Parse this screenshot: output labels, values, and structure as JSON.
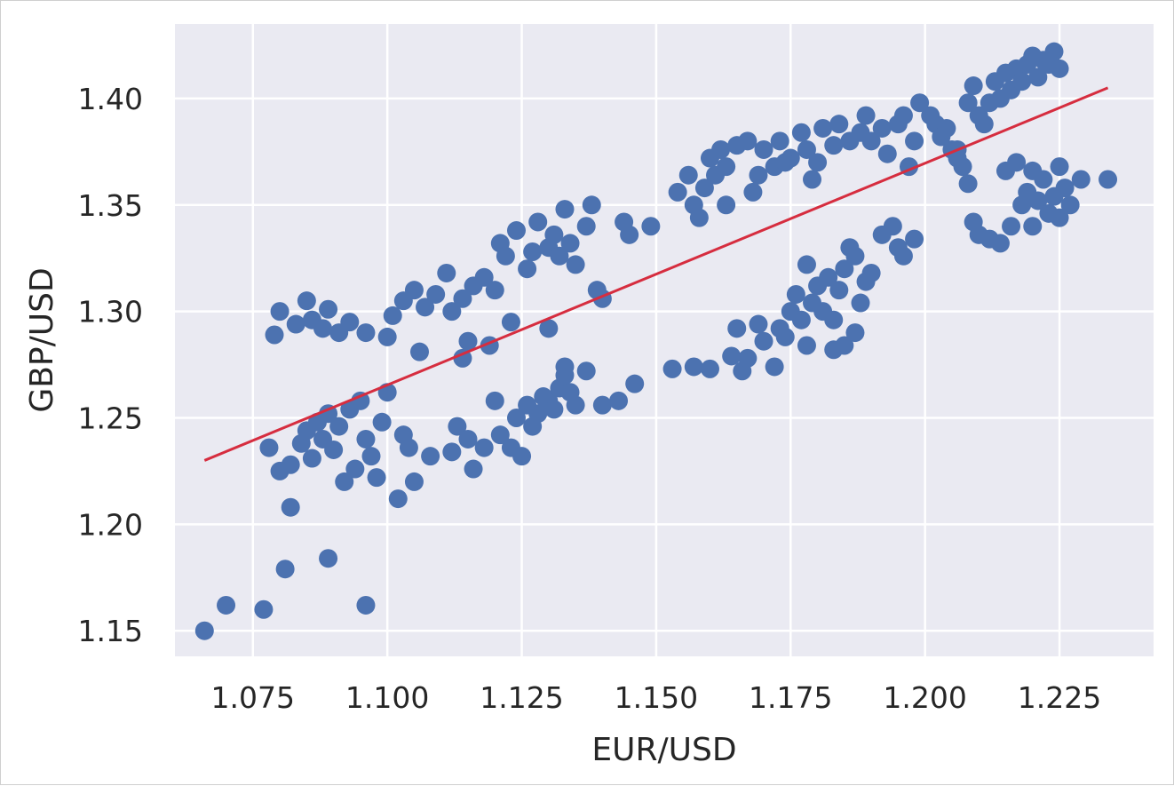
{
  "chart_data": {
    "type": "scatter",
    "title": "",
    "xlabel": "EUR/USD",
    "ylabel": "GBP/USD",
    "xlim": [
      1.0605,
      1.2425
    ],
    "ylim": [
      1.138,
      1.435
    ],
    "xticks": [
      1.075,
      1.1,
      1.125,
      1.15,
      1.175,
      1.2,
      1.225
    ],
    "xtick_labels": [
      "1.075",
      "1.100",
      "1.125",
      "1.150",
      "1.175",
      "1.200",
      "1.225"
    ],
    "yticks": [
      1.15,
      1.2,
      1.25,
      1.3,
      1.35,
      1.4
    ],
    "ytick_labels": [
      "1.15",
      "1.20",
      "1.25",
      "1.30",
      "1.35",
      "1.40"
    ],
    "grid": true,
    "colors": {
      "points": "#4c72b0",
      "fit_line": "#d62d3f",
      "plot_bg": "#eaeaf2",
      "grid": "#ffffff"
    },
    "series": [
      {
        "points": [
          [
            1.066,
            1.15
          ],
          [
            1.07,
            1.162
          ],
          [
            1.077,
            1.16
          ],
          [
            1.081,
            1.179
          ],
          [
            1.089,
            1.184
          ],
          [
            1.096,
            1.162
          ],
          [
            1.082,
            1.208
          ],
          [
            1.078,
            1.236
          ],
          [
            1.08,
            1.225
          ],
          [
            1.082,
            1.228
          ],
          [
            1.084,
            1.238
          ],
          [
            1.085,
            1.244
          ],
          [
            1.086,
            1.231
          ],
          [
            1.087,
            1.248
          ],
          [
            1.088,
            1.24
          ],
          [
            1.089,
            1.252
          ],
          [
            1.09,
            1.235
          ],
          [
            1.091,
            1.246
          ],
          [
            1.092,
            1.22
          ],
          [
            1.093,
            1.254
          ],
          [
            1.094,
            1.226
          ],
          [
            1.095,
            1.258
          ],
          [
            1.096,
            1.24
          ],
          [
            1.097,
            1.232
          ],
          [
            1.098,
            1.222
          ],
          [
            1.099,
            1.248
          ],
          [
            1.1,
            1.262
          ],
          [
            1.102,
            1.212
          ],
          [
            1.103,
            1.242
          ],
          [
            1.104,
            1.236
          ],
          [
            1.105,
            1.22
          ],
          [
            1.108,
            1.232
          ],
          [
            1.112,
            1.234
          ],
          [
            1.113,
            1.246
          ],
          [
            1.115,
            1.24
          ],
          [
            1.116,
            1.226
          ],
          [
            1.118,
            1.236
          ],
          [
            1.12,
            1.258
          ],
          [
            1.121,
            1.242
          ],
          [
            1.123,
            1.236
          ],
          [
            1.124,
            1.25
          ],
          [
            1.125,
            1.232
          ],
          [
            1.126,
            1.256
          ],
          [
            1.127,
            1.246
          ],
          [
            1.128,
            1.252
          ],
          [
            1.129,
            1.26
          ],
          [
            1.13,
            1.258
          ],
          [
            1.131,
            1.254
          ],
          [
            1.132,
            1.264
          ],
          [
            1.133,
            1.27
          ],
          [
            1.134,
            1.262
          ],
          [
            1.135,
            1.256
          ],
          [
            1.137,
            1.272
          ],
          [
            1.14,
            1.256
          ],
          [
            1.143,
            1.258
          ],
          [
            1.146,
            1.266
          ],
          [
            1.13,
            1.292
          ],
          [
            1.133,
            1.274
          ],
          [
            1.123,
            1.295
          ],
          [
            1.119,
            1.284
          ],
          [
            1.115,
            1.286
          ],
          [
            1.114,
            1.278
          ],
          [
            1.106,
            1.281
          ],
          [
            1.079,
            1.289
          ],
          [
            1.08,
            1.3
          ],
          [
            1.083,
            1.294
          ],
          [
            1.085,
            1.305
          ],
          [
            1.086,
            1.296
          ],
          [
            1.088,
            1.292
          ],
          [
            1.089,
            1.301
          ],
          [
            1.091,
            1.29
          ],
          [
            1.093,
            1.295
          ],
          [
            1.096,
            1.29
          ],
          [
            1.1,
            1.288
          ],
          [
            1.101,
            1.298
          ],
          [
            1.103,
            1.305
          ],
          [
            1.105,
            1.31
          ],
          [
            1.107,
            1.302
          ],
          [
            1.109,
            1.308
          ],
          [
            1.111,
            1.318
          ],
          [
            1.112,
            1.3
          ],
          [
            1.114,
            1.306
          ],
          [
            1.116,
            1.312
          ],
          [
            1.118,
            1.316
          ],
          [
            1.12,
            1.31
          ],
          [
            1.121,
            1.332
          ],
          [
            1.122,
            1.326
          ],
          [
            1.124,
            1.338
          ],
          [
            1.126,
            1.32
          ],
          [
            1.127,
            1.328
          ],
          [
            1.128,
            1.342
          ],
          [
            1.13,
            1.33
          ],
          [
            1.131,
            1.336
          ],
          [
            1.132,
            1.326
          ],
          [
            1.133,
            1.348
          ],
          [
            1.134,
            1.332
          ],
          [
            1.135,
            1.322
          ],
          [
            1.137,
            1.34
          ],
          [
            1.138,
            1.35
          ],
          [
            1.139,
            1.31
          ],
          [
            1.14,
            1.306
          ],
          [
            1.144,
            1.342
          ],
          [
            1.145,
            1.336
          ],
          [
            1.149,
            1.34
          ],
          [
            1.153,
            1.273
          ],
          [
            1.157,
            1.274
          ],
          [
            1.16,
            1.273
          ],
          [
            1.164,
            1.279
          ],
          [
            1.165,
            1.292
          ],
          [
            1.166,
            1.272
          ],
          [
            1.167,
            1.278
          ],
          [
            1.169,
            1.294
          ],
          [
            1.17,
            1.286
          ],
          [
            1.172,
            1.274
          ],
          [
            1.173,
            1.292
          ],
          [
            1.174,
            1.288
          ],
          [
            1.175,
            1.3
          ],
          [
            1.176,
            1.308
          ],
          [
            1.177,
            1.296
          ],
          [
            1.178,
            1.284
          ],
          [
            1.179,
            1.304
          ],
          [
            1.18,
            1.312
          ],
          [
            1.181,
            1.3
          ],
          [
            1.182,
            1.316
          ],
          [
            1.183,
            1.296
          ],
          [
            1.184,
            1.31
          ],
          [
            1.185,
            1.32
          ],
          [
            1.186,
            1.33
          ],
          [
            1.187,
            1.326
          ],
          [
            1.188,
            1.304
          ],
          [
            1.189,
            1.314
          ],
          [
            1.19,
            1.318
          ],
          [
            1.192,
            1.336
          ],
          [
            1.194,
            1.34
          ],
          [
            1.195,
            1.33
          ],
          [
            1.196,
            1.326
          ],
          [
            1.198,
            1.334
          ],
          [
            1.178,
            1.322
          ],
          [
            1.183,
            1.282
          ],
          [
            1.185,
            1.284
          ],
          [
            1.187,
            1.29
          ],
          [
            1.154,
            1.356
          ],
          [
            1.156,
            1.364
          ],
          [
            1.157,
            1.35
          ],
          [
            1.158,
            1.344
          ],
          [
            1.159,
            1.358
          ],
          [
            1.16,
            1.372
          ],
          [
            1.161,
            1.364
          ],
          [
            1.162,
            1.376
          ],
          [
            1.163,
            1.368
          ],
          [
            1.165,
            1.378
          ],
          [
            1.167,
            1.38
          ],
          [
            1.169,
            1.364
          ],
          [
            1.17,
            1.376
          ],
          [
            1.172,
            1.368
          ],
          [
            1.173,
            1.38
          ],
          [
            1.175,
            1.372
          ],
          [
            1.177,
            1.384
          ],
          [
            1.178,
            1.376
          ],
          [
            1.18,
            1.37
          ],
          [
            1.181,
            1.386
          ],
          [
            1.183,
            1.378
          ],
          [
            1.184,
            1.388
          ],
          [
            1.186,
            1.38
          ],
          [
            1.188,
            1.384
          ],
          [
            1.189,
            1.392
          ],
          [
            1.19,
            1.38
          ],
          [
            1.192,
            1.386
          ],
          [
            1.193,
            1.374
          ],
          [
            1.195,
            1.388
          ],
          [
            1.196,
            1.392
          ],
          [
            1.197,
            1.368
          ],
          [
            1.198,
            1.38
          ],
          [
            1.199,
            1.398
          ],
          [
            1.201,
            1.392
          ],
          [
            1.202,
            1.388
          ],
          [
            1.204,
            1.386
          ],
          [
            1.205,
            1.376
          ],
          [
            1.206,
            1.372
          ],
          [
            1.207,
            1.368
          ],
          [
            1.208,
            1.398
          ],
          [
            1.209,
            1.406
          ],
          [
            1.21,
            1.392
          ],
          [
            1.211,
            1.388
          ],
          [
            1.212,
            1.398
          ],
          [
            1.213,
            1.408
          ],
          [
            1.214,
            1.4
          ],
          [
            1.215,
            1.412
          ],
          [
            1.216,
            1.404
          ],
          [
            1.217,
            1.414
          ],
          [
            1.218,
            1.408
          ],
          [
            1.219,
            1.416
          ],
          [
            1.22,
            1.42
          ],
          [
            1.221,
            1.41
          ],
          [
            1.222,
            1.418
          ],
          [
            1.223,
            1.416
          ],
          [
            1.224,
            1.422
          ],
          [
            1.225,
            1.414
          ],
          [
            1.209,
            1.342
          ],
          [
            1.21,
            1.336
          ],
          [
            1.212,
            1.334
          ],
          [
            1.214,
            1.332
          ],
          [
            1.216,
            1.34
          ],
          [
            1.218,
            1.35
          ],
          [
            1.219,
            1.356
          ],
          [
            1.22,
            1.34
          ],
          [
            1.221,
            1.352
          ],
          [
            1.222,
            1.362
          ],
          [
            1.223,
            1.346
          ],
          [
            1.224,
            1.354
          ],
          [
            1.225,
            1.344
          ],
          [
            1.226,
            1.358
          ],
          [
            1.227,
            1.35
          ],
          [
            1.229,
            1.362
          ],
          [
            1.234,
            1.362
          ],
          [
            1.215,
            1.366
          ],
          [
            1.217,
            1.37
          ],
          [
            1.22,
            1.366
          ],
          [
            1.225,
            1.368
          ],
          [
            1.208,
            1.36
          ],
          [
            1.206,
            1.376
          ],
          [
            1.203,
            1.382
          ],
          [
            1.174,
            1.37
          ],
          [
            1.168,
            1.356
          ],
          [
            1.179,
            1.362
          ],
          [
            1.163,
            1.35
          ]
        ]
      }
    ],
    "regression_line": {
      "x": [
        1.066,
        1.234
      ],
      "y": [
        1.23,
        1.405
      ]
    }
  }
}
